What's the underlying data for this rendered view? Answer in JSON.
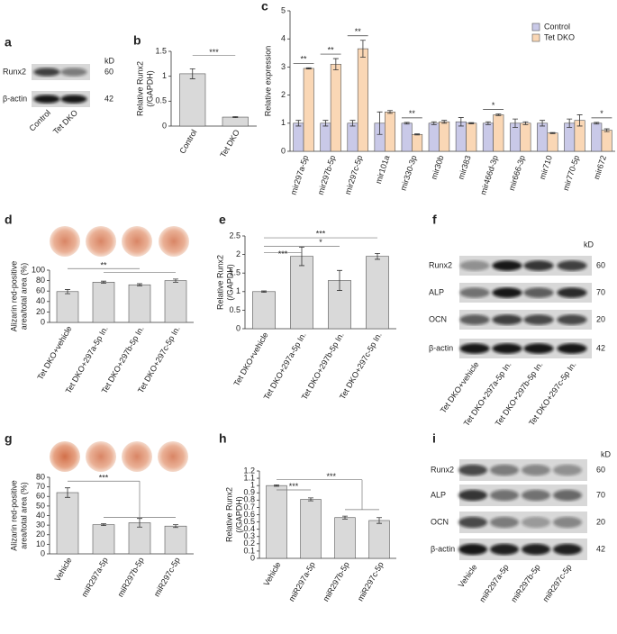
{
  "chart_data": [
    {
      "type": "bar",
      "panel": "b",
      "ylabel": [
        "Relative Runx2",
        "(/GAPDH)"
      ],
      "categories": [
        "Control",
        "Tet DKO"
      ],
      "values": [
        1.05,
        0.18
      ],
      "errors": [
        0.1,
        0.01
      ],
      "color": "#d9d9d9",
      "ylim": [
        0,
        1.5
      ],
      "yticks": [
        0,
        0.5,
        1,
        1.5
      ],
      "annotations": [
        "***"
      ]
    },
    {
      "type": "bar",
      "panel": "c",
      "ylabel": [
        "Relative expression"
      ],
      "categories": [
        "mir297a-5p",
        "mir297b-5p",
        "mir297c-5p",
        "mir101a",
        "mir330-3p",
        "mir30b",
        "mir383",
        "mir466d-3p",
        "mir666-3p",
        "mir710",
        "mir770-5p",
        "mir672"
      ],
      "series": [
        {
          "name": "Control",
          "color": "#c9c9e8",
          "values": [
            1,
            1,
            1,
            1,
            1,
            1,
            1.05,
            1,
            1,
            1,
            1,
            1
          ],
          "errors": [
            0.1,
            0.1,
            0.1,
            0.4,
            0.03,
            0.05,
            0.15,
            0.05,
            0.15,
            0.1,
            0.15,
            0.03
          ]
        },
        {
          "name": "Tet DKO",
          "color": "#fad7b5",
          "values": [
            2.95,
            3.1,
            3.65,
            1.4,
            0.6,
            1.05,
            1.0,
            1.3,
            1.0,
            0.65,
            1.1,
            0.75
          ],
          "errors": [
            0.02,
            0.2,
            0.3,
            0.05,
            0.02,
            0.05,
            0.02,
            0.03,
            0.05,
            0.02,
            0.2,
            0.05
          ]
        }
      ],
      "significance": [
        "**",
        "**",
        "**",
        null,
        "**",
        null,
        null,
        "*",
        null,
        null,
        null,
        "*"
      ],
      "ylim": [
        0,
        5
      ],
      "yticks": [
        0,
        1,
        2,
        3,
        4,
        5
      ],
      "legend": "top-right"
    },
    {
      "type": "bar",
      "panel": "d",
      "ylabel": [
        "Alizarin red-positive",
        "area/total area (%)"
      ],
      "categories": [
        "Tet DKO+vehicle",
        "Tet DKO+297a-5p In.",
        "Tet DKO+297b-5p In.",
        "Tet DKO+297c-5p In."
      ],
      "values": [
        59,
        77,
        72,
        80
      ],
      "errors": [
        4,
        2,
        2,
        3
      ],
      "color": "#d9d9d9",
      "ylim": [
        0,
        100
      ],
      "yticks": [
        0,
        20,
        40,
        60,
        80,
        100
      ],
      "annotations": [
        "**"
      ]
    },
    {
      "type": "bar",
      "panel": "e",
      "ylabel": [
        "Relative Runx2",
        "(/GAPDH)"
      ],
      "categories": [
        "Tet DKO+vehicle",
        "Tet DKO+297a-5p In.",
        "Tet DKO+297b-5p In.",
        "Tet DKO+297c-5p In."
      ],
      "values": [
        1.0,
        1.95,
        1.3,
        1.95
      ],
      "errors": [
        0.02,
        0.25,
        0.27,
        0.08
      ],
      "color": "#d9d9d9",
      "ylim": [
        0,
        2.5
      ],
      "yticks": [
        0,
        0.5,
        1,
        1.5,
        2,
        2.5
      ],
      "annotations": [
        "***",
        "*",
        "***"
      ]
    },
    {
      "type": "bar",
      "panel": "g",
      "ylabel": [
        "Alizarin red-positive",
        "area/total area (%)"
      ],
      "categories": [
        "Vehicle",
        "miR297a-5p",
        "miR297b-5p",
        "miR297c-5p"
      ],
      "values": [
        64,
        30.5,
        32.5,
        29
      ],
      "errors": [
        5,
        1,
        4.5,
        1.5
      ],
      "color": "#d9d9d9",
      "ylim": [
        0,
        80
      ],
      "yticks": [
        0,
        10,
        20,
        30,
        40,
        50,
        60,
        70,
        80
      ],
      "annotations": [
        "***"
      ]
    },
    {
      "type": "bar",
      "panel": "h",
      "ylabel": [
        "Relative Runx2",
        "(/GAPDH)"
      ],
      "categories": [
        "Vehicle",
        "miR297a-5p",
        "miR297b-5p",
        "miR297c-5p"
      ],
      "values": [
        1.0,
        0.81,
        0.56,
        0.52
      ],
      "errors": [
        0.01,
        0.02,
        0.02,
        0.04
      ],
      "color": "#d9d9d9",
      "ylim": [
        0,
        1.2
      ],
      "yticks": [
        0,
        0.1,
        0.2,
        0.3,
        0.4,
        0.5,
        0.6,
        0.7,
        0.8,
        0.9,
        1,
        1.1,
        1.2
      ],
      "annotations": [
        "***",
        "***"
      ]
    }
  ],
  "blots": [
    {
      "panel": "a",
      "rows": [
        "Runx2",
        "β-actin"
      ],
      "unit": "kD",
      "sizes": [
        60,
        42
      ],
      "lanes": [
        "Control",
        "Tet DKO"
      ]
    },
    {
      "panel": "f",
      "rows": [
        "Runx2",
        "ALP",
        "OCN",
        "β-actin"
      ],
      "unit": "kD",
      "sizes": [
        60,
        70,
        20,
        42
      ],
      "lanes": [
        "Tet DKO+vehicle",
        "Tet DKO+297a-5p In.",
        "Tet DKO+297b-5p In.",
        "Tet DKO+297c-5p In."
      ]
    },
    {
      "panel": "i",
      "rows": [
        "Runx2",
        "ALP",
        "OCN",
        "β-actin"
      ],
      "unit": "kD",
      "sizes": [
        60,
        70,
        20,
        42
      ],
      "lanes": [
        "Vehicle",
        "miR297a-5p",
        "miR297b-5p",
        "miR297c-5p"
      ]
    }
  ]
}
